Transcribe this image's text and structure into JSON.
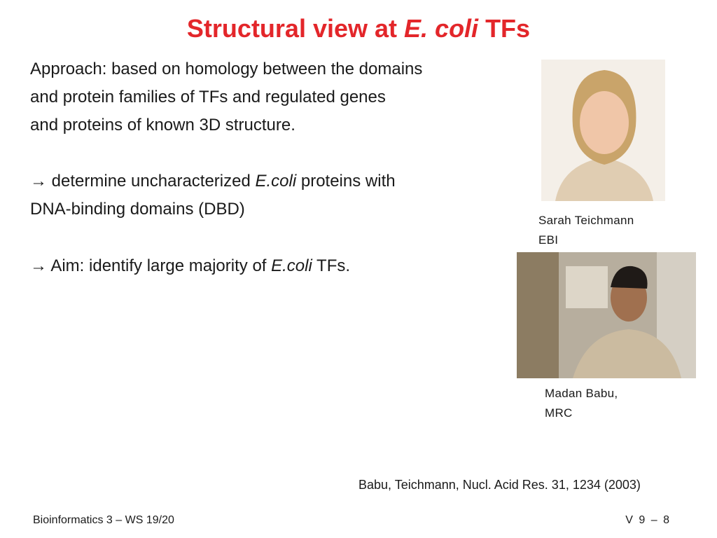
{
  "title": [
    {
      "text": "Structural view at ",
      "italic": false
    },
    {
      "text": "E. coli",
      "italic": true
    },
    {
      "text": " TFs",
      "italic": false
    }
  ],
  "approach": [
    [
      {
        "text": "Approach: based on homology between the domains",
        "italic": false
      }
    ],
    [
      {
        "text": "and protein families of TFs and regulated genes",
        "italic": false
      }
    ],
    [
      {
        "text": "and proteins of known 3D structure.",
        "italic": false
      }
    ]
  ],
  "bullet_1": [
    [
      {
        "text": "→ determine uncharacterized ",
        "italic": false
      },
      {
        "text": "E.coli",
        "italic": true
      },
      {
        "text": " proteins with",
        "italic": false
      }
    ],
    [
      {
        "text": "DNA-binding domains (DBD)",
        "italic": false
      }
    ]
  ],
  "bullet_2": [
    [
      {
        "text": "→ Aim: identify large majority of ",
        "italic": false
      },
      {
        "text": "E.coli",
        "italic": true
      },
      {
        "text": " TFs.",
        "italic": false
      }
    ]
  ],
  "photo_1_caption": [
    "Sarah Teichmann",
    "EBI"
  ],
  "photo_2_caption": [
    "Madan Babu,",
    "MRC"
  ],
  "reference": "Babu, Teichmann, Nucl. Acid Res. 31, 1234 (2003)",
  "footer": {
    "left": "Bioinformatics 3 – WS 19/20",
    "right": "V 9 – 8"
  }
}
